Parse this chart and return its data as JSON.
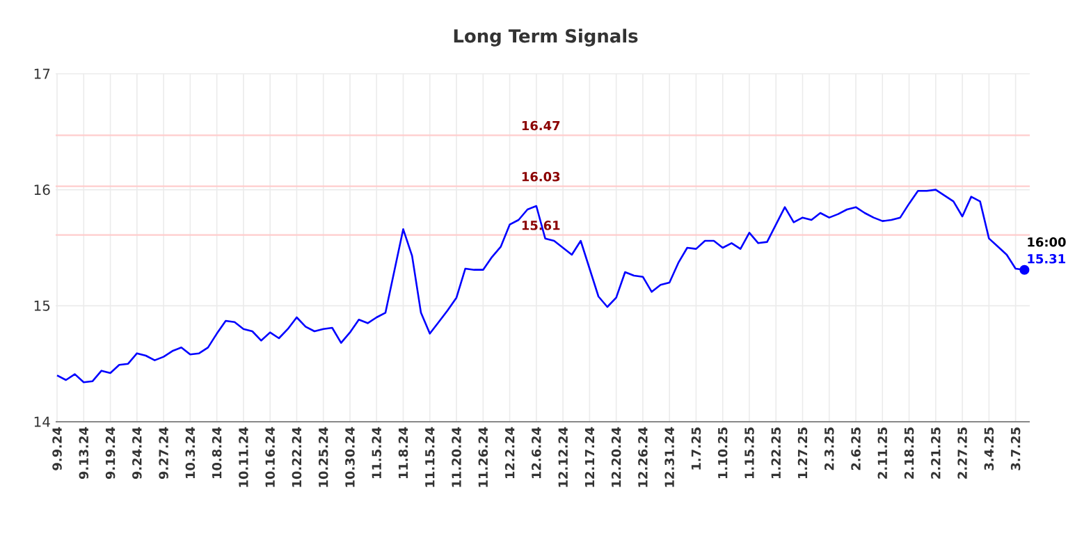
{
  "chart_data": {
    "type": "line",
    "title": "Long Term Signals",
    "categories": [
      "9.9.24",
      null,
      null,
      "9.13.24",
      null,
      null,
      "9.19.24",
      null,
      null,
      "9.24.24",
      null,
      null,
      "9.27.24",
      null,
      null,
      "10.3.24",
      null,
      null,
      "10.8.24",
      null,
      null,
      "10.11.24",
      null,
      null,
      "10.16.24",
      null,
      null,
      "10.22.24",
      null,
      null,
      "10.25.24",
      null,
      null,
      "10.30.24",
      null,
      null,
      "11.5.24",
      null,
      null,
      "11.8.24",
      null,
      null,
      "11.15.24",
      null,
      null,
      "11.20.24",
      null,
      null,
      "11.26.24",
      null,
      null,
      "12.2.24",
      null,
      null,
      "12.6.24",
      null,
      null,
      "12.12.24",
      null,
      null,
      "12.17.24",
      null,
      null,
      "12.20.24",
      null,
      null,
      "12.26.24",
      null,
      null,
      "12.31.24",
      null,
      null,
      "1.7.25",
      null,
      null,
      "1.10.25",
      null,
      null,
      "1.15.25",
      null,
      null,
      "1.22.25",
      null,
      null,
      "1.27.25",
      null,
      null,
      "2.3.25",
      null,
      null,
      "2.6.25",
      null,
      null,
      "2.11.25",
      null,
      null,
      "2.18.25",
      null,
      null,
      "2.21.25",
      null,
      null,
      "2.27.25",
      null,
      null,
      "3.4.25",
      null,
      null,
      "3.7.25",
      null
    ],
    "ylim": [
      14,
      17
    ],
    "yticks": [
      14,
      15,
      16,
      17
    ],
    "grid": true,
    "line_style": "solid",
    "series": [
      {
        "color": "#0000ff",
        "values": [
          14.4,
          14.36,
          14.41,
          14.34,
          14.35,
          14.44,
          14.42,
          14.49,
          14.5,
          14.59,
          14.57,
          14.53,
          14.56,
          14.61,
          14.64,
          14.58,
          14.59,
          14.64,
          14.76,
          14.87,
          14.86,
          14.8,
          14.78,
          14.7,
          14.77,
          14.72,
          14.8,
          14.9,
          14.82,
          14.78,
          14.8,
          14.81,
          14.68,
          14.77,
          14.88,
          14.85,
          14.9,
          14.94,
          15.3,
          15.66,
          15.43,
          14.94,
          14.76,
          14.86,
          14.96,
          15.07,
          15.32,
          15.31,
          15.31,
          15.42,
          15.51,
          15.7,
          15.74,
          15.83,
          15.86,
          15.58,
          15.56,
          15.5,
          15.44,
          15.56,
          15.32,
          15.08,
          14.99,
          15.07,
          15.29,
          15.26,
          15.25,
          15.12,
          15.18,
          15.2,
          15.37,
          15.5,
          15.49,
          15.56,
          15.56,
          15.5,
          15.54,
          15.49,
          15.63,
          15.54,
          15.55,
          15.7,
          15.85,
          15.72,
          15.76,
          15.74,
          15.8,
          15.76,
          15.79,
          15.83,
          15.85,
          15.8,
          15.76,
          15.73,
          15.74,
          15.76,
          15.88,
          15.99,
          15.99,
          16.0,
          15.95,
          15.9,
          15.77,
          15.94,
          15.9,
          15.58,
          15.51,
          15.44,
          15.32,
          15.31
        ],
        "value_labels": [
          null,
          null,
          null,
          null,
          null,
          null,
          null,
          null,
          null,
          null,
          null,
          null,
          null,
          null,
          null,
          null,
          null,
          null,
          null,
          null,
          null,
          null,
          null,
          null,
          null,
          null,
          null,
          null,
          null,
          null,
          null,
          null,
          null,
          null,
          null,
          null,
          null,
          null,
          null,
          null,
          null,
          null,
          null,
          null,
          null,
          null,
          null,
          null,
          null,
          null,
          null,
          null,
          null,
          null,
          null,
          null,
          null,
          null,
          null,
          null,
          null,
          null,
          null,
          null,
          null,
          null,
          null,
          null,
          null,
          null,
          null,
          null,
          null,
          null,
          null,
          null,
          null,
          null,
          null,
          null,
          null,
          null,
          null,
          null,
          null,
          null,
          null,
          null,
          null,
          null,
          null,
          null,
          null,
          null,
          null,
          null,
          null,
          null,
          null,
          null,
          null,
          null,
          null,
          null,
          null,
          null,
          null,
          null,
          null,
          "15.31"
        ]
      }
    ],
    "ref_lines": [
      {
        "axis": "y",
        "value": 16.47,
        "label": "16.47",
        "color": "#ffcccc"
      },
      {
        "axis": "y",
        "value": 16.03,
        "label": "16.03",
        "color": "#ffcccc"
      },
      {
        "axis": "y",
        "value": 15.61,
        "label": "15.61",
        "color": "#ffcccc"
      }
    ],
    "annotations": [
      "16:00"
    ]
  }
}
